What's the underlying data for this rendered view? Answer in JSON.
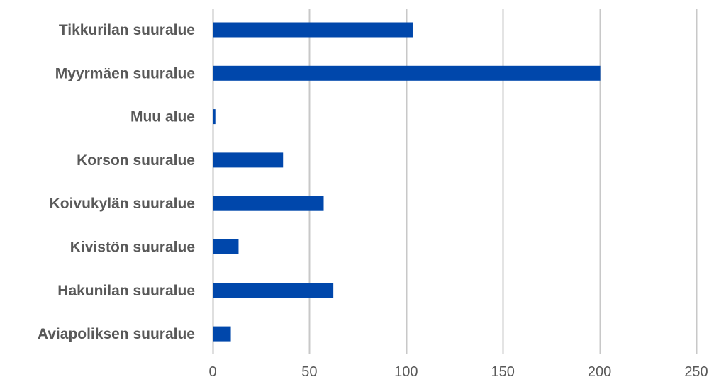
{
  "chart_data": {
    "type": "bar",
    "orientation": "horizontal",
    "categories": [
      "Tikkurilan suuralue",
      "Myyrmäen suuralue",
      "Muu alue",
      "Korson suuralue",
      "Koivukylän suuralue",
      "Kivistön suuralue",
      "Hakunilan suuralue",
      "Aviapoliksen suuralue"
    ],
    "values": [
      103,
      200,
      1,
      36,
      57,
      13,
      62,
      9
    ],
    "x_ticks": [
      "0",
      "50",
      "100",
      "150",
      "200",
      "250"
    ],
    "xlim": [
      0,
      250
    ],
    "grid": "vertical",
    "legend": "none",
    "title": "",
    "xlabel": "",
    "ylabel": "",
    "colors": {
      "bar": "#0047ab",
      "grid": "#c8c8c8",
      "axis": "#bfbfbf",
      "text": "#595959"
    }
  }
}
